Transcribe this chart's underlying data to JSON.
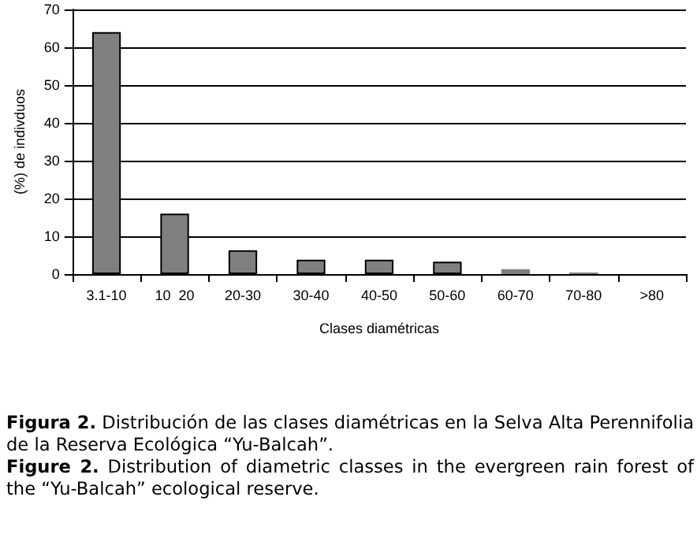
{
  "chart_data": {
    "type": "bar",
    "xlabel": "Clases diamétricas",
    "ylabel": "(%) de indivduos",
    "categories": [
      "3.1-10",
      "10  20",
      "20-30",
      "30-40",
      "40-50",
      "50-60",
      "60-70",
      "70-80",
      ">80"
    ],
    "values": [
      64,
      16,
      6.3,
      3.8,
      3.8,
      3.3,
      1.3,
      0.4,
      0
    ],
    "color": "#808080",
    "ylim": [
      0,
      70
    ],
    "yticks": [
      0,
      10,
      20,
      30,
      40,
      50,
      60,
      70
    ],
    "grid": "y",
    "annotations": [
      "Figura 2. Distribución de las clases diamétricas en la Selva Alta Perennifolia de la Reserva Ecológica “Yu-Balcah”.",
      "Figure 2. Distribution of diametric classes in the evergreen rain forest of the “Yu-Balcah” ecological reserve."
    ]
  }
}
